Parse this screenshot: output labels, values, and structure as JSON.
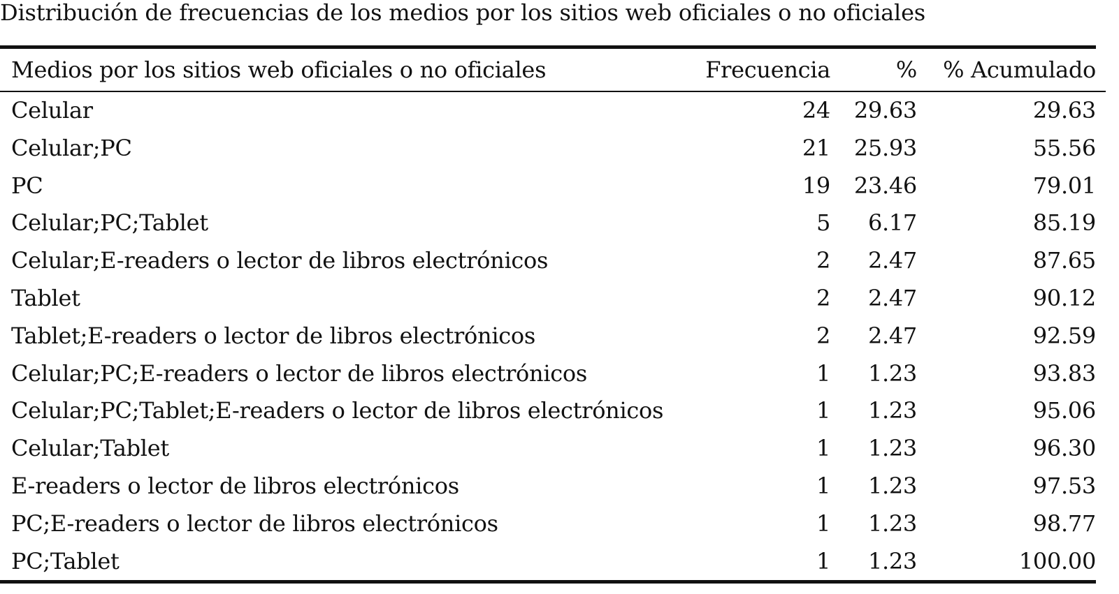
{
  "caption": "Distribución de frecuencias de los medios por los sitios web oficiales o no oficiales",
  "headers": {
    "label": "Medios por los sitios web oficiales o no oficiales",
    "freq": "Frecuencia",
    "pct": "%",
    "cum": "% Acumulado"
  },
  "rows": [
    {
      "label": "Celular",
      "freq": "24",
      "pct": "29.63",
      "cum": "29.63"
    },
    {
      "label": "Celular;PC",
      "freq": "21",
      "pct": "25.93",
      "cum": "55.56"
    },
    {
      "label": "PC",
      "freq": "19",
      "pct": "23.46",
      "cum": "79.01"
    },
    {
      "label": "Celular;PC;Tablet",
      "freq": "5",
      "pct": "6.17",
      "cum": "85.19"
    },
    {
      "label": "Celular;E-readers o lector de libros electrónicos",
      "freq": "2",
      "pct": "2.47",
      "cum": "87.65"
    },
    {
      "label": "Tablet",
      "freq": "2",
      "pct": "2.47",
      "cum": "90.12"
    },
    {
      "label": "Tablet;E-readers o lector de libros electrónicos",
      "freq": "2",
      "pct": "2.47",
      "cum": "92.59"
    },
    {
      "label": "Celular;PC;E-readers o lector de libros electrónicos",
      "freq": "1",
      "pct": "1.23",
      "cum": "93.83"
    },
    {
      "label": "Celular;PC;Tablet;E-readers o lector de libros electrónicos",
      "freq": "1",
      "pct": "1.23",
      "cum": "95.06"
    },
    {
      "label": "Celular;Tablet",
      "freq": "1",
      "pct": "1.23",
      "cum": "96.30"
    },
    {
      "label": "E-readers o lector de libros electrónicos",
      "freq": "1",
      "pct": "1.23",
      "cum": "97.53"
    },
    {
      "label": "PC;E-readers o lector de libros electrónicos",
      "freq": "1",
      "pct": "1.23",
      "cum": "98.77"
    },
    {
      "label": "PC;Tablet",
      "freq": "1",
      "pct": "1.23",
      "cum": "100.00"
    }
  ]
}
